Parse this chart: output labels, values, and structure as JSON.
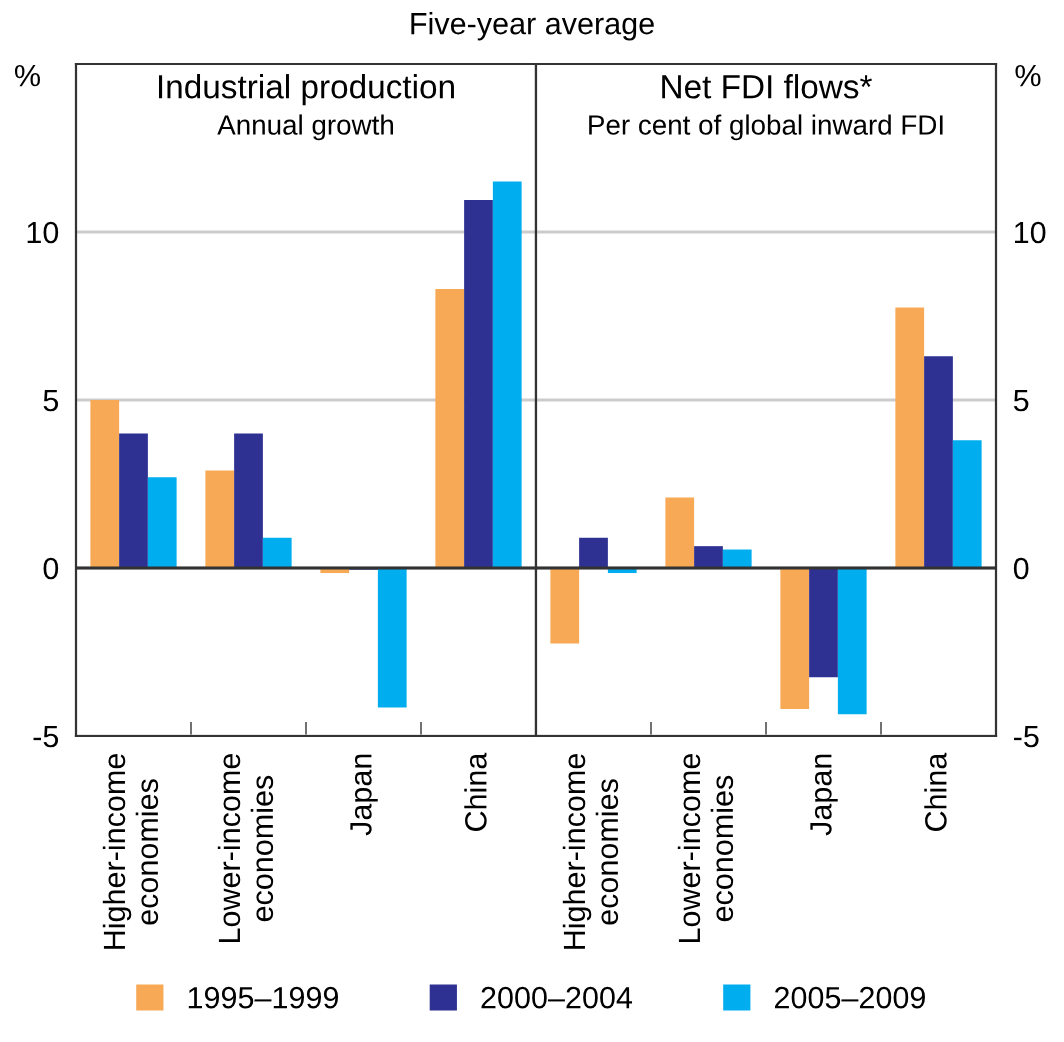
{
  "chart_data": [
    {
      "type": "bar",
      "title": "Industrial production",
      "subtitle": "Annual growth",
      "ylabel": "%",
      "annotations": [
        "Five-year average"
      ],
      "categories": [
        "Higher-income\neconomies",
        "Lower-income\neconomies",
        "Japan",
        "China"
      ],
      "series": [
        {
          "name": "1995–1999",
          "color": "#f7a955",
          "values": [
            5.0,
            2.9,
            -0.15,
            8.3
          ]
        },
        {
          "name": "2000–2004",
          "color": "#2e3192",
          "values": [
            4.0,
            4.0,
            -0.05,
            10.95
          ]
        },
        {
          "name": "2005–2009",
          "color": "#00aeef",
          "values": [
            2.7,
            0.9,
            -4.15,
            11.5
          ]
        }
      ],
      "ylim": [
        -5,
        15
      ],
      "yticks": [
        -5,
        0,
        5,
        10
      ],
      "grid": "y",
      "legend": "bottom"
    },
    {
      "type": "bar",
      "title": "Net FDI flows*",
      "subtitle": "Per cent of global inward FDI",
      "ylabel": "%",
      "categories": [
        "Higher-income\neconomies",
        "Lower-income\neconomies",
        "Japan",
        "China"
      ],
      "series": [
        {
          "color": "#f7a955",
          "values": [
            -2.25,
            2.1,
            -4.2,
            7.75
          ]
        },
        {
          "color": "#2e3192",
          "values": [
            0.9,
            0.65,
            -3.25,
            6.3
          ]
        },
        {
          "color": "#00aeef",
          "values": [
            -0.15,
            0.55,
            -4.35,
            3.8
          ]
        }
      ],
      "ylim": [
        -5,
        15
      ],
      "yticks": [
        -5,
        0,
        5,
        10
      ],
      "grid": "y"
    }
  ]
}
